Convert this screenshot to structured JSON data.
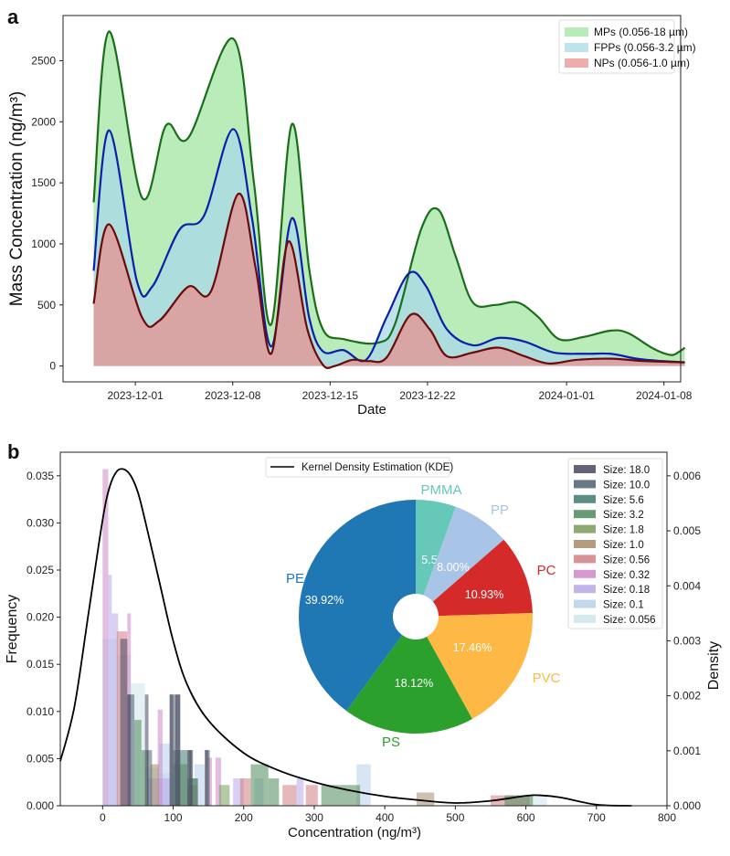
{
  "chart_data": [
    {
      "panel": "a",
      "type": "area",
      "xlabel": "Date",
      "ylabel": "Mass Concentration (ng/m³)",
      "ylim": [
        -130,
        2870
      ],
      "yticks": [
        0,
        500,
        1000,
        1500,
        2000,
        2500
      ],
      "xticks": [
        "2023-12-01",
        "2023-12-08",
        "2023-12-15",
        "2023-12-22",
        "2024-01-01",
        "2024-01-08"
      ],
      "x_start": "2023-11-28",
      "x_end": "2024-01-10",
      "xlim_days_from_start": [
        -2.2,
        42.2
      ],
      "legend_position": "top-right",
      "series": [
        {
          "name": "MPs (0.056-18 µm)",
          "fill": "#90e090",
          "line": "#1a6e1a",
          "days": [
            0,
            1,
            2,
            3,
            4,
            5,
            6,
            7,
            8,
            9,
            10,
            11,
            12,
            13,
            14,
            15,
            16,
            17,
            18,
            19,
            20,
            21,
            22,
            23,
            24,
            25,
            26,
            27,
            28,
            29,
            30,
            31,
            32,
            33,
            34,
            35,
            36,
            37,
            38,
            39,
            40,
            41,
            42,
            43
          ],
          "values": [
            1340,
            2750,
            1380,
            1960,
            1880,
            2010,
            2690,
            1300,
            330,
            1980,
            250,
            200,
            180,
            450,
            1150,
            1280,
            600,
            490,
            520,
            480,
            230,
            250,
            290,
            240,
            110,
            150,
            150,
            150,
            150,
            150,
            150,
            150,
            150,
            150,
            150,
            150,
            150,
            150,
            150,
            150,
            150,
            150,
            150,
            150
          ]
        },
        {
          "name": "FPPs (0.056-3.2 µm)",
          "fill": "#a8d8e8",
          "line": "#0b1fa8",
          "values": [
            780,
            1940,
            640,
            1120,
            1250,
            1940,
            800,
            160,
            1210,
            130,
            130,
            60,
            70,
            720,
            760,
            250,
            200,
            240,
            150,
            110,
            110,
            60,
            40
          ]
        },
        {
          "name": "NPs (0.056-1.0 µm)",
          "fill": "#e89090",
          "line": "#6b0a0a",
          "values": [
            510,
            1170,
            360,
            640,
            600,
            1420,
            380,
            100,
            1020,
            0,
            50,
            50,
            70,
            430,
            390,
            80,
            150,
            60,
            30,
            60,
            50,
            30
          ]
        }
      ]
    },
    {
      "panel": "b",
      "type": "bar",
      "subtype": "histogram_with_kde_and_inset_pie",
      "xlabel": "Concentration (ng/m³)",
      "ylabel": "Frequency",
      "y2label": "Density",
      "xlim": [
        -60,
        800
      ],
      "ylim": [
        0,
        0.0375
      ],
      "y2lim": [
        0,
        0.00643
      ],
      "xticks": [
        0,
        100,
        200,
        300,
        400,
        500,
        600,
        700,
        800
      ],
      "yticks": [
        "0.000",
        "0.005",
        "0.010",
        "0.015",
        "0.020",
        "0.025",
        "0.030",
        "0.035"
      ],
      "y2ticks": [
        "0.000",
        "0.001",
        "0.002",
        "0.003",
        "0.004",
        "0.005",
        "0.006"
      ],
      "kde": {
        "name": "Kernel Density Estimation (KDE)",
        "x": [
          -60,
          -40,
          -20,
          0,
          10,
          20,
          30,
          40,
          50,
          60,
          80,
          100,
          120,
          150,
          200,
          250,
          300,
          350,
          400,
          450,
          500,
          550,
          600,
          620,
          650,
          700,
          750
        ],
        "density": [
          0.00081,
          0.0018,
          0.0035,
          0.0052,
          0.0058,
          0.00608,
          0.00612,
          0.006,
          0.0057,
          0.0052,
          0.0041,
          0.003,
          0.0022,
          0.00155,
          0.00096,
          0.00064,
          0.00043,
          0.00028,
          0.00017,
          0.0001,
          5e-05,
          9e-05,
          0.00018,
          0.00019,
          0.00015,
          2e-05,
          0.0
        ]
      },
      "histogram": [
        {
          "size": "18.0",
          "color": "#4a4560",
          "bins": [
            [
              25,
              35,
              0.0177
            ],
            [
              35,
              40,
              0.0118
            ],
            [
              60,
              65,
              0.0118
            ],
            [
              95,
              100,
              0.0118
            ],
            [
              103,
              110,
              0.0118
            ],
            [
              120,
              127,
              0.0059
            ],
            [
              145,
              150,
              0.0059
            ]
          ]
        },
        {
          "size": "10.0",
          "color": "#4e6070",
          "bins": [
            [
              35,
              45,
              0.0118
            ],
            [
              63,
              70,
              0.0059
            ],
            [
              95,
              110,
              0.0118
            ],
            [
              123,
              128,
              0.0059
            ],
            [
              145,
              152,
              0.0059
            ]
          ]
        },
        {
          "size": "5.6",
          "color": "#3e7a70",
          "bins": [
            [
              100,
              125,
              0.0059
            ],
            [
              125,
              135,
              0.0029
            ]
          ]
        },
        {
          "size": "3.2",
          "color": "#4e8a5a",
          "bins": [
            [
              45,
              55,
              0.0091
            ],
            [
              55,
              65,
              0.0059
            ],
            [
              210,
              235,
              0.0044
            ],
            [
              235,
              250,
              0.0029
            ],
            [
              310,
              365,
              0.0022
            ],
            [
              570,
              610,
              0.0011
            ]
          ]
        },
        {
          "size": "1.8",
          "color": "#7a9a5a",
          "bins": [
            [
              100,
              120,
              0.0044
            ],
            [
              120,
              135,
              0.0029
            ],
            [
              165,
              180,
              0.0022
            ]
          ]
        },
        {
          "size": "1.0",
          "color": "#a88a6a",
          "bins": [
            [
              68,
              80,
              0.0044
            ],
            [
              445,
              470,
              0.0014
            ]
          ]
        },
        {
          "size": "0.56",
          "color": "#d08080",
          "bins": [
            [
              20,
              35,
              0.0185
            ],
            [
              120,
              135,
              0.0022
            ],
            [
              195,
              210,
              0.0029
            ],
            [
              255,
              275,
              0.0022
            ],
            [
              288,
              305,
              0.0022
            ],
            [
              550,
              580,
              0.0011
            ],
            [
              580,
              605,
              0.0011
            ]
          ]
        },
        {
          "size": "0.32",
          "color": "#cc88c8",
          "bins": [
            [
              0,
              8,
              0.0357
            ],
            [
              35,
              40,
              0.0204
            ],
            [
              78,
              85,
              0.0102
            ],
            [
              150,
              155,
              0.0051
            ],
            [
              160,
              168,
              0.0051
            ]
          ]
        },
        {
          "size": "0.18",
          "color": "#b8a8e8",
          "bins": [
            [
              8,
              13,
              0.0245
            ],
            [
              13,
              22,
              0.0204
            ],
            [
              65,
              95,
              0.0029
            ],
            [
              185,
              200,
              0.0029
            ],
            [
              275,
              285,
              0.0029
            ]
          ]
        },
        {
          "size": "0.1",
          "color": "#b8d0ec",
          "bins": [
            [
              80,
              95,
              0.0066
            ],
            [
              130,
              145,
              0.0044
            ],
            [
              215,
              228,
              0.0029
            ],
            [
              360,
              380,
              0.0044
            ]
          ]
        },
        {
          "size": "0.056",
          "color": "#cde6ec",
          "bins": [
            [
              0,
              20,
              0.0177
            ],
            [
              20,
              40,
              0.016
            ],
            [
              40,
              60,
              0.013
            ],
            [
              60,
              80,
              0.004
            ],
            [
              80,
              100,
              0.0035
            ],
            [
              600,
              630,
              0.0011
            ]
          ]
        }
      ],
      "pie": {
        "type": "pie",
        "slices": [
          {
            "label": "PMMA",
            "value": 5.57,
            "pct_label": "5.57%",
            "color": "#66c8b8"
          },
          {
            "label": "PP",
            "value": 8.0,
            "pct_label": "8.00%",
            "color": "#a8c4e6"
          },
          {
            "label": "PC",
            "value": 10.93,
            "pct_label": "10.93%",
            "color": "#d42a2a"
          },
          {
            "label": "PVC",
            "value": 17.46,
            "pct_label": "17.46%",
            "color": "#fdb846"
          },
          {
            "label": "PS",
            "value": 18.12,
            "pct_label": "18.12%",
            "color": "#2ca02c"
          },
          {
            "label": "PE",
            "value": 39.92,
            "pct_label": "39.92%",
            "color": "#1f77b4"
          }
        ]
      },
      "legend_position": "top-right"
    }
  ],
  "panel_labels": {
    "a": "a",
    "b": "b"
  }
}
